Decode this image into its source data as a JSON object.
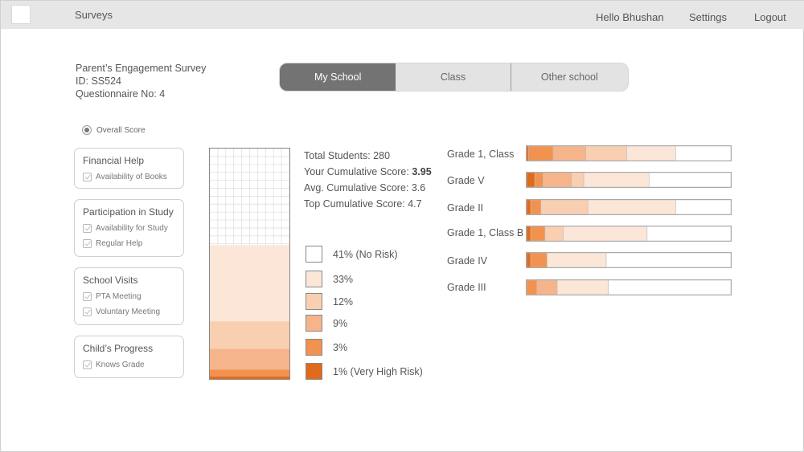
{
  "header": {
    "brand": "Surveys",
    "greeting": "Hello Bhushan",
    "settings": "Settings",
    "logout": "Logout"
  },
  "survey": {
    "title": "Parent’s Engagement Survey",
    "id": "ID: SS524",
    "questionnaire": "Questionnaire No: 4"
  },
  "tabs": [
    {
      "label": "My School",
      "active": true
    },
    {
      "label": "Class",
      "active": false
    },
    {
      "label": "Other school",
      "active": false
    }
  ],
  "overall_score_label": "Overall Score",
  "categories": [
    {
      "title": "Financial Help",
      "items": [
        "Availability of Books"
      ]
    },
    {
      "title": "Participation in Study",
      "items": [
        "Availability for Study",
        "Regular Help"
      ]
    },
    {
      "title": "School Visits",
      "items": [
        "PTA Meeting",
        "Voluntary Meeting"
      ]
    },
    {
      "title": "Child’s Progress",
      "items": [
        "Knows Grade"
      ]
    }
  ],
  "stats": {
    "total_students": "Total Students: 280",
    "your_score_label": "Your Cumulative Score: ",
    "your_score_value": "3.95",
    "avg_score": "Avg. Cumulative Score: 3.6",
    "top_score": "Top Cumulative Score: 4.7"
  },
  "colors": {
    "risk": [
      "#ffffff",
      "#fbe6d8",
      "#f9cfb1",
      "#f6b48a",
      "#f2924f",
      "#e06a1b"
    ],
    "border": "#888888"
  },
  "legend": [
    "41% (No Risk)",
    "33%",
    "12%",
    "9%",
    "3%",
    "1% (Very High Risk)"
  ],
  "chart_data": {
    "type": "bar",
    "orientation": "horizontal-stacked",
    "categories": [
      "Grade 1, Class",
      "Grade V",
      "Grade II",
      "Grade 1, Class B",
      "Grade IV",
      "Grade III"
    ],
    "series_levels": [
      "1% (Very High Risk)",
      "3%",
      "9%",
      "12%",
      "33%",
      "41% (No Risk)"
    ],
    "values": [
      [
        1,
        12,
        16,
        20,
        24,
        27
      ],
      [
        4,
        4,
        14,
        6,
        32,
        40
      ],
      [
        2,
        5,
        0,
        23,
        43,
        27
      ],
      [
        2,
        7,
        0,
        9,
        41,
        41
      ],
      [
        2,
        8,
        0,
        0,
        29,
        61
      ],
      [
        0,
        5,
        10,
        0,
        25,
        60
      ]
    ]
  },
  "waffle": {
    "cols": 10,
    "rows": 29,
    "levels_from_bottom": [
      1,
      3,
      9,
      12,
      33
    ]
  }
}
